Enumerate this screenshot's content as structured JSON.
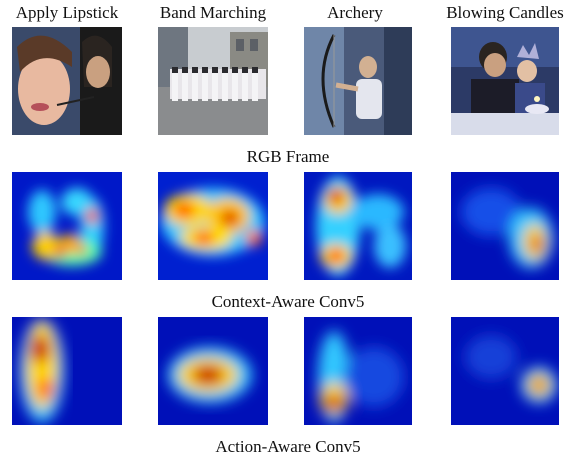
{
  "column_labels": [
    "Apply Lipstick",
    "Band Marching",
    "Archery",
    "Blowing Candles"
  ],
  "row_captions": {
    "rgb": "RGB Frame",
    "context": "Context-Aware Conv5",
    "action": "Action-Aware Conv5"
  },
  "colors": {
    "heatmap_low": "#0000b8",
    "heatmap_mid": "#3ad1ff",
    "heatmap_hot": "#ffd400",
    "heatmap_peak": "#c00000"
  }
}
